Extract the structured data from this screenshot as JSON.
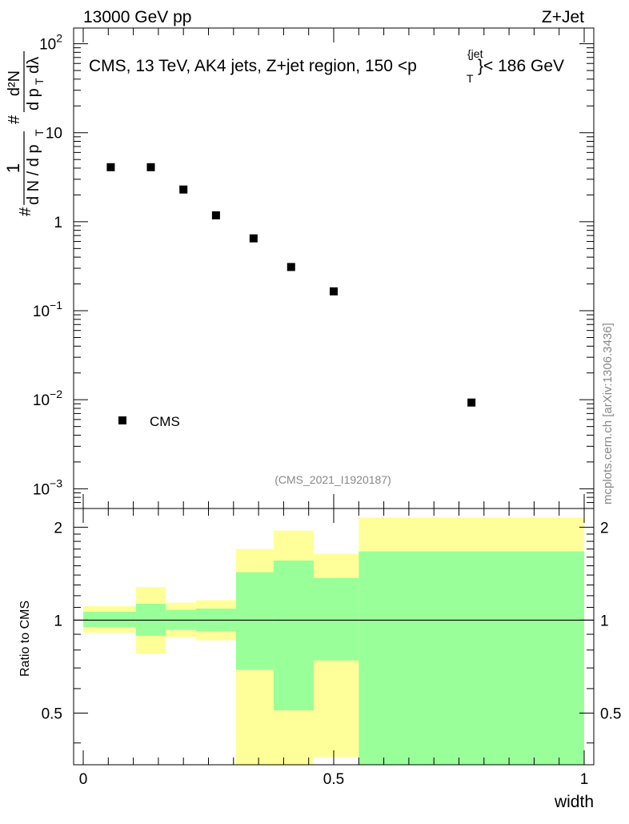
{
  "header": {
    "left": "13000 GeV pp",
    "right": "Z+Jet"
  },
  "plot_title": {
    "main": "CMS, 13 TeV, AK4 jets, Z+jet region, 150 <p",
    "sup": "{jet",
    "sub": "T",
    "tail": "}< 186 GeV"
  },
  "analysis_id": "(CMS_2021_I1920187)",
  "watermark": "mcplots.cern.ch [arXiv:1306.3436]",
  "y_main_label": {
    "hash1": "#",
    "frac1_num": "1",
    "frac1_den": "d N / d p",
    "frac1_den_sub": "T",
    "hash2": "#",
    "frac2_num": "d²N",
    "frac2_den": "d p",
    "frac2_den_sub": "T",
    "frac2_den_tail": "dλ"
  },
  "y_ratio_label": "Ratio to CMS",
  "x_label": "width",
  "legend": {
    "marker": "square",
    "label": "CMS"
  },
  "colors": {
    "yellow": "#ffff99",
    "green": "#99ff99",
    "marker": "#000000"
  },
  "chart_data": [
    {
      "type": "scatter",
      "y_scale": "log",
      "xlim": [
        0,
        1
      ],
      "ylim": [
        0.0006,
        150
      ],
      "y_ticks": [
        {
          "value": 0.001,
          "base": "10",
          "exp": "−3"
        },
        {
          "value": 0.01,
          "base": "10",
          "exp": "−2"
        },
        {
          "value": 0.1,
          "base": "10",
          "exp": "−1"
        },
        {
          "value": 1,
          "base": "1",
          "exp": ""
        },
        {
          "value": 10,
          "base": "10",
          "exp": ""
        },
        {
          "value": 100,
          "base": "10",
          "exp": "2"
        }
      ],
      "series": [
        {
          "name": "CMS",
          "x": [
            0.055,
            0.135,
            0.2,
            0.265,
            0.34,
            0.415,
            0.5,
            0.775
          ],
          "y": [
            4.1,
            4.1,
            2.3,
            1.18,
            0.65,
            0.31,
            0.165,
            0.0093
          ]
        }
      ]
    },
    {
      "type": "area",
      "y_scale": "log",
      "xlim": [
        0,
        1
      ],
      "ylim": [
        0.34,
        2.3
      ],
      "y_ticks": [
        {
          "value": 0.5,
          "label": "0.5"
        },
        {
          "value": 1,
          "label": "1"
        },
        {
          "value": 2,
          "label": "2"
        }
      ],
      "x_ticks": [
        {
          "value": 0,
          "label": "0"
        },
        {
          "value": 0.5,
          "label": "0.5"
        },
        {
          "value": 1,
          "label": "1"
        }
      ],
      "reference_line": 1,
      "bins": [
        {
          "x0": 0.0,
          "x1": 0.105,
          "y_lo": 0.91,
          "y_hi": 1.11,
          "g_lo": 0.95,
          "g_hi": 1.065
        },
        {
          "x0": 0.105,
          "x1": 0.165,
          "y_lo": 0.78,
          "y_hi": 1.28,
          "g_lo": 0.89,
          "g_hi": 1.13
        },
        {
          "x0": 0.165,
          "x1": 0.225,
          "y_lo": 0.88,
          "y_hi": 1.14,
          "g_lo": 0.93,
          "g_hi": 1.08
        },
        {
          "x0": 0.225,
          "x1": 0.305,
          "y_lo": 0.86,
          "y_hi": 1.16,
          "g_lo": 0.92,
          "g_hi": 1.09
        },
        {
          "x0": 0.305,
          "x1": 0.38,
          "y_lo": 0.34,
          "y_hi": 1.7,
          "g_lo": 0.69,
          "g_hi": 1.43
        },
        {
          "x0": 0.38,
          "x1": 0.46,
          "y_lo": 0.34,
          "y_hi": 1.95,
          "g_lo": 0.51,
          "g_hi": 1.56
        },
        {
          "x0": 0.46,
          "x1": 0.55,
          "y_lo": 0.36,
          "y_hi": 1.64,
          "g_lo": 0.74,
          "g_hi": 1.37
        },
        {
          "x0": 0.55,
          "x1": 1.0,
          "y_lo": 0.34,
          "y_hi": 2.15,
          "g_lo": 0.34,
          "g_hi": 1.67
        }
      ]
    }
  ]
}
